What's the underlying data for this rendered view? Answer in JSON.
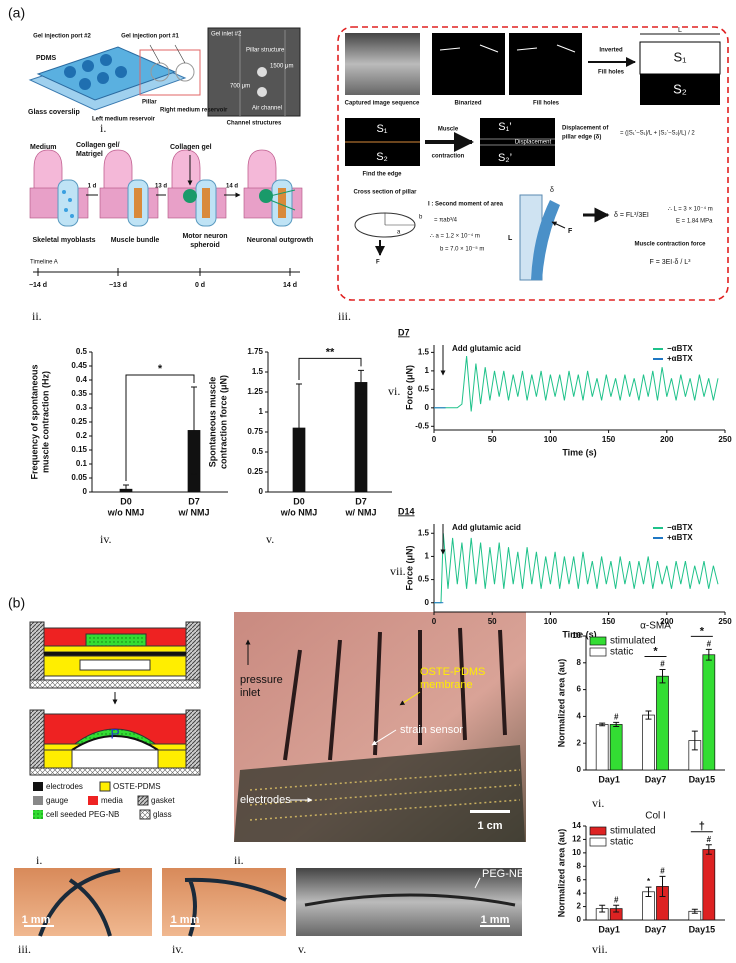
{
  "panel_a": {
    "label": "(a)",
    "i": {
      "numeral": "i.",
      "labels": [
        "Gel injection port #2",
        "Gel injection port #1",
        "PDMS",
        "Glass coverslip",
        "Left medium reservoir",
        "Pillar",
        "Right medium reservoir",
        "Gel inlet #2",
        "Pillar structure",
        "1500 μm",
        "700 μm",
        "Air channel",
        "Channel structures"
      ]
    },
    "ii": {
      "numeral": "ii.",
      "labels": [
        "Medium",
        "Collagen gel/",
        "Matrigel",
        "1 d",
        "Collagen gel",
        "13 d",
        "14 d",
        "Skeletal myoblasts",
        "Muscle bundle",
        "Motor neuron",
        "spheroid",
        "Neuronal outgrowth",
        "Timeline A"
      ],
      "timeline": [
        "−14 d",
        "−13 d",
        "0 d",
        "14 d"
      ]
    },
    "iii": {
      "numeral": "iii.",
      "labels": [
        "Captured image sequence",
        "Binarized",
        "Fill holes",
        "Inverted",
        "Fill holes",
        "L",
        "S₁",
        "S₂",
        "S₁",
        "S₂",
        "Find the edge",
        "Muscle",
        "contraction",
        "S₁’",
        "Displacement",
        "S₂’",
        "Displacement of",
        "pillar edge (δ)",
        "= (|S₁’−S₁|/L + |S₂’−S₂|/L) / 2",
        "Cross section of pillar",
        "I : Second moment of area",
        "= πab³/4",
        "∴ a = 1.2 × 10⁻⁴ m",
        "b = 7.0 × 10⁻⁵ m",
        "b",
        "a",
        "F",
        "L",
        "δ",
        "F",
        "δ = FL³/3EI",
        "∴ L = 3 × 10⁻⁴ m",
        "E = 1.84 MPa",
        "Muscle contraction force",
        "F = 3EI·δ / L³"
      ]
    }
  },
  "panel_b": {
    "label": "(b)",
    "i": {
      "numeral": "i.",
      "p": "P",
      "legend": [
        "electrodes",
        "OSTE-PDMS",
        "gauge",
        "media",
        "gasket",
        "cell seeded PEG-NB",
        "glass"
      ]
    },
    "ii": {
      "numeral": "ii.",
      "labels": [
        "pressure",
        "inlet",
        "OSTE-PDMS",
        "membrane",
        "strain sensor",
        "electrodes",
        "1 cm"
      ]
    },
    "iii": {
      "numeral": "iii.",
      "scale": "1 mm"
    },
    "iv": {
      "numeral": "iv.",
      "scale": "1 mm"
    },
    "v": {
      "numeral": "v.",
      "scale": "1 mm",
      "label": "PEG-NB gel"
    }
  },
  "chart_data": [
    {
      "type": "bar",
      "panel_label": "iv.",
      "ylabel": [
        "Frequency of  spontaneous",
        "muscle contraction (Hz)"
      ],
      "categories": [
        "D0",
        "D7"
      ],
      "category_sublabels": [
        "w/o NMJ",
        "w/ NMJ"
      ],
      "values": [
        0.01,
        0.22
      ],
      "errors": [
        0.015,
        0.155
      ],
      "color": "#111111",
      "comparison": "*",
      "ylim": [
        0,
        0.5
      ],
      "yticks": [
        0,
        0.05,
        0.1,
        0.15,
        0.2,
        0.25,
        0.3,
        0.35,
        0.4,
        0.45,
        0.5
      ]
    },
    {
      "type": "bar",
      "panel_label": "v.",
      "ylabel": [
        "Spontaneous muscle",
        "contraction force (μN)"
      ],
      "categories": [
        "D0",
        "D7"
      ],
      "category_sublabels": [
        "w/o NMJ",
        "w/ NMJ"
      ],
      "values": [
        0.8,
        1.37
      ],
      "errors": [
        0.55,
        0.15
      ],
      "color": "#111111",
      "comparison": "**",
      "ylim": [
        0,
        1.75
      ],
      "yticks": [
        0,
        0.25,
        0.5,
        0.75,
        1,
        1.25,
        1.5,
        1.75
      ]
    },
    {
      "type": "line",
      "panel_label": "vi.",
      "title": "D7",
      "annotation": "Add glutamic acid",
      "xlabel": "Time (s)",
      "ylabel": "Force (μN)",
      "xlim": [
        0,
        250
      ],
      "xticks": [
        0,
        50,
        100,
        150,
        200,
        250
      ],
      "ylim": [
        -0.6,
        1.7
      ],
      "yticks": [
        -0.5,
        0,
        0.5,
        1,
        1.5
      ],
      "legend": "upper right",
      "series": [
        {
          "name": "−αBTX",
          "color": "#1fc28a",
          "x": [
            0,
            10,
            20,
            24,
            28,
            32,
            36,
            40,
            44,
            48,
            52,
            56,
            60,
            64,
            68,
            72,
            76,
            80,
            84,
            88,
            92,
            96,
            100,
            104,
            108,
            112,
            116,
            120,
            124,
            128,
            132,
            136,
            140,
            144,
            148,
            152,
            156,
            160,
            164,
            168,
            172,
            176,
            180,
            184,
            188,
            192,
            196,
            200,
            204,
            208,
            212,
            216,
            220,
            224,
            228,
            232,
            236,
            240,
            244
          ],
          "values": [
            0,
            0,
            0,
            0.1,
            1.4,
            -0.1,
            1.2,
            0.1,
            1.1,
            0.2,
            1.0,
            0.3,
            1.0,
            0.2,
            0.9,
            0.3,
            1.0,
            0.2,
            0.9,
            0.3,
            1.0,
            0.2,
            0.9,
            0.3,
            0.9,
            0.2,
            1.0,
            0.3,
            0.9,
            0.2,
            1.0,
            0.3,
            0.8,
            0.2,
            0.9,
            0.3,
            0.8,
            0.2,
            0.9,
            0.3,
            0.8,
            0.2,
            0.9,
            0.3,
            1.0,
            0.2,
            1.1,
            0.3,
            0.8,
            0.2,
            0.9,
            0.3,
            0.8,
            0.2,
            0.9,
            0.3,
            0.8,
            0.2,
            0.8
          ]
        },
        {
          "name": "+αBTX",
          "color": "#1f77c4",
          "x": [
            0,
            5,
            10
          ],
          "values": [
            0,
            0,
            0
          ]
        }
      ]
    },
    {
      "type": "line",
      "panel_label": "vii.",
      "title": "D14",
      "annotation": "Add glutamic acid",
      "xlabel": "Time (s)",
      "ylabel": "Force (μN)",
      "xlim": [
        0,
        250
      ],
      "xticks": [
        0,
        50,
        100,
        150,
        200,
        250
      ],
      "ylim": [
        -0.2,
        1.7
      ],
      "yticks": [
        0,
        0.5,
        1,
        1.5
      ],
      "legend": "upper right",
      "series": [
        {
          "name": "−αBTX",
          "color": "#1fc28a",
          "x": [
            0,
            6,
            8,
            12,
            16,
            20,
            24,
            28,
            32,
            36,
            40,
            44,
            48,
            52,
            56,
            60,
            64,
            68,
            72,
            76,
            80,
            84,
            88,
            92,
            96,
            100,
            104,
            108,
            112,
            116,
            120,
            124,
            128,
            132,
            136,
            140,
            144,
            148,
            152,
            156,
            160,
            164,
            168,
            172,
            176,
            180,
            184,
            188,
            192,
            196,
            200,
            204,
            208,
            212,
            216,
            220,
            224,
            228,
            232,
            236,
            240,
            244
          ],
          "values": [
            0,
            0,
            1.5,
            0.3,
            1.4,
            0.4,
            1.3,
            0.3,
            1.4,
            0.4,
            1.3,
            0.3,
            1.2,
            0.4,
            1.3,
            0.3,
            1.2,
            0.4,
            1.1,
            0.3,
            1.2,
            0.4,
            1.1,
            0.3,
            1.0,
            0.4,
            1.1,
            0.3,
            1.0,
            0.4,
            1.0,
            0.3,
            1.1,
            0.4,
            0.9,
            0.3,
            1.0,
            0.4,
            0.9,
            0.3,
            1.0,
            0.4,
            0.9,
            0.3,
            0.9,
            0.4,
            1.0,
            0.3,
            0.9,
            0.4,
            0.8,
            0.3,
            0.9,
            0.4,
            0.9,
            0.3,
            0.8,
            0.4,
            0.9,
            0.3,
            0.8,
            0.4
          ]
        },
        {
          "name": "+αBTX",
          "color": "#1f77c4",
          "x": [
            0,
            4,
            8
          ],
          "values": [
            0,
            0,
            0
          ]
        }
      ]
    },
    {
      "type": "bar",
      "panel_label": "vi.",
      "title": "α-SMA",
      "ylabel": [
        "Normalized area (au)"
      ],
      "categories": [
        "Day1",
        "Day7",
        "Day15"
      ],
      "legend": "upper left",
      "category_brackets": [
        null,
        "*",
        "*"
      ],
      "series": [
        {
          "name": "stimulated",
          "color": "#33dd33",
          "values": [
            3.4,
            7.0,
            8.6
          ],
          "errors": [
            0.15,
            0.5,
            0.4
          ],
          "value_marks": [
            "#",
            "#",
            "#"
          ]
        },
        {
          "name": "static",
          "color": "#ffffff",
          "values": [
            3.4,
            4.1,
            2.2
          ],
          "errors": [
            0.1,
            0.3,
            0.7
          ],
          "value_marks": [
            null,
            null,
            null
          ]
        }
      ],
      "ylim": [
        0,
        10
      ],
      "yticks": [
        0,
        2,
        4,
        6,
        8,
        10
      ]
    },
    {
      "type": "bar",
      "panel_label": "vii.",
      "title": "Col I",
      "ylabel": [
        "Normalized area (au)"
      ],
      "categories": [
        "Day1",
        "Day7",
        "Day15"
      ],
      "legend": "upper left",
      "category_brackets": [
        null,
        null,
        "†"
      ],
      "series": [
        {
          "name": "stimulated",
          "color": "#dd2222",
          "values": [
            1.7,
            5.0,
            10.5
          ],
          "errors": [
            0.5,
            1.5,
            0.7
          ],
          "value_marks": [
            "#",
            "#",
            "#"
          ]
        },
        {
          "name": "static",
          "color": "#ffffff",
          "values": [
            1.7,
            4.2,
            1.3
          ],
          "errors": [
            0.5,
            0.7,
            0.3
          ],
          "value_marks": [
            null,
            "*",
            null
          ]
        }
      ],
      "ylim": [
        0,
        14
      ],
      "yticks": [
        0,
        2,
        4,
        6,
        8,
        10,
        12,
        14
      ]
    }
  ]
}
